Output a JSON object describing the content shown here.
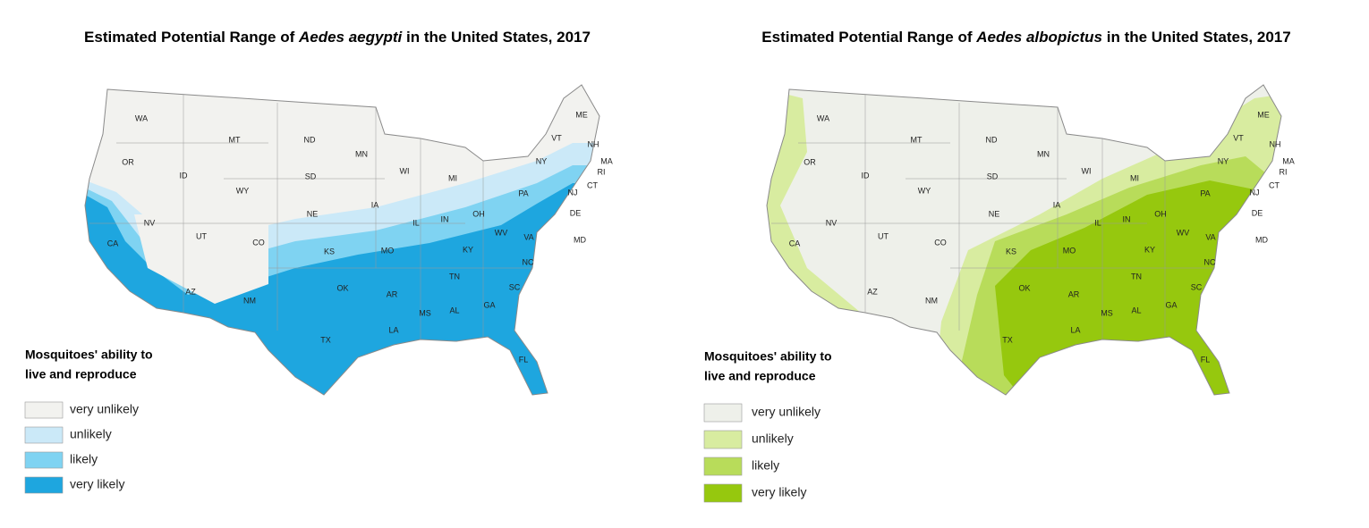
{
  "maps": [
    {
      "title": {
        "before": "Estimated Potential Range of",
        "species": "Aedes aegypti",
        "after": "in the United States, 2017"
      },
      "states": [
        "WA",
        "OR",
        "ID",
        "MT",
        "ND",
        "MN",
        "SD",
        "WI",
        "MI",
        "NY",
        "VT",
        "ME",
        "NH",
        "MA",
        "RI",
        "CT",
        "NJ",
        "DE",
        "MD",
        "PA",
        "WY",
        "NE",
        "IA",
        "IL",
        "IN",
        "OH",
        "NV",
        "UT",
        "CO",
        "KS",
        "MO",
        "KY",
        "WV",
        "VA",
        "CA",
        "AZ",
        "NM",
        "OK",
        "AR",
        "TN",
        "NC",
        "SC",
        "MS",
        "AL",
        "GA",
        "TX",
        "LA",
        "FL"
      ],
      "legend": {
        "title": [
          "Mosquitoes' ability to",
          "live and reproduce"
        ],
        "items": [
          {
            "label": "very unlikely",
            "color": "#f2f2ef"
          },
          {
            "label": "unlikely",
            "color": "#cbe9f8"
          },
          {
            "label": "likely",
            "color": "#7fd3f2"
          },
          {
            "label": "very likely",
            "color": "#1ea6df"
          }
        ]
      }
    },
    {
      "title": {
        "before": "Estimated Potential Range of",
        "species": "Aedes albopictus",
        "after": "in the United States, 2017"
      },
      "states": [
        "WA",
        "OR",
        "ID",
        "MT",
        "ND",
        "MN",
        "SD",
        "WI",
        "MI",
        "NY",
        "VT",
        "ME",
        "NH",
        "MA",
        "RI",
        "CT",
        "NJ",
        "DE",
        "MD",
        "PA",
        "WY",
        "NE",
        "IA",
        "IL",
        "IN",
        "OH",
        "NV",
        "UT",
        "CO",
        "KS",
        "MO",
        "KY",
        "WV",
        "VA",
        "CA",
        "AZ",
        "NM",
        "OK",
        "AR",
        "TN",
        "NC",
        "SC",
        "MS",
        "AL",
        "GA",
        "TX",
        "LA",
        "FL"
      ],
      "legend": {
        "title": [
          "Mosquitoes' ability to",
          "live and reproduce"
        ],
        "items": [
          {
            "label": "very unlikely",
            "color": "#eef0ea"
          },
          {
            "label": "unlikely",
            "color": "#d8eca0"
          },
          {
            "label": "likely",
            "color": "#b8dc5a"
          },
          {
            "label": "very likely",
            "color": "#96c80e"
          }
        ]
      }
    }
  ]
}
